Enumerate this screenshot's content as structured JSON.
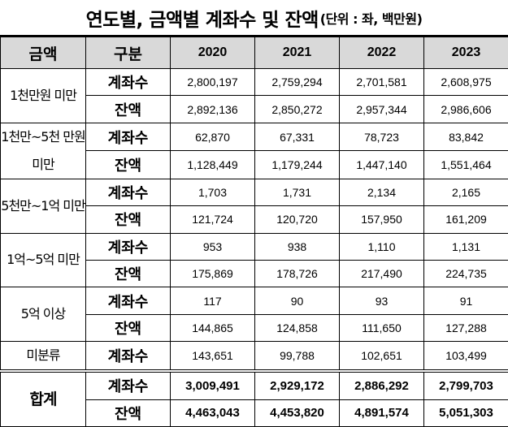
{
  "title": "연도별, 금액별 계좌수 및 잔액",
  "unit": "(단위 : 좌, 백만원)",
  "headers": [
    "금액",
    "구분",
    "2020",
    "2021",
    "2022",
    "2023"
  ],
  "groups": [
    {
      "category": "1천만원 미만",
      "rows": [
        {
          "type": "계좌수",
          "values": [
            "2,800,197",
            "2,759,294",
            "2,701,581",
            "2,608,975"
          ]
        },
        {
          "type": "잔액",
          "values": [
            "2,892,136",
            "2,850,272",
            "2,957,344",
            "2,986,606"
          ]
        }
      ]
    },
    {
      "category": "1천만~5천 만원 미만",
      "rows": [
        {
          "type": "계좌수",
          "values": [
            "62,870",
            "67,331",
            "78,723",
            "83,842"
          ]
        },
        {
          "type": "잔액",
          "values": [
            "1,128,449",
            "1,179,244",
            "1,447,140",
            "1,551,464"
          ]
        }
      ]
    },
    {
      "category": "5천만~1억 미만",
      "rows": [
        {
          "type": "계좌수",
          "values": [
            "1,703",
            "1,731",
            "2,134",
            "2,165"
          ]
        },
        {
          "type": "잔액",
          "values": [
            "121,724",
            "120,720",
            "157,950",
            "161,209"
          ]
        }
      ]
    },
    {
      "category": "1억~5억 미만",
      "rows": [
        {
          "type": "계좌수",
          "values": [
            "953",
            "938",
            "1,110",
            "1,131"
          ]
        },
        {
          "type": "잔액",
          "values": [
            "175,869",
            "178,726",
            "217,490",
            "224,735"
          ]
        }
      ]
    },
    {
      "category": "5억 이상",
      "rows": [
        {
          "type": "계좌수",
          "values": [
            "117",
            "90",
            "93",
            "91"
          ]
        },
        {
          "type": "잔액",
          "values": [
            "144,865",
            "124,858",
            "111,650",
            "127,288"
          ]
        }
      ]
    },
    {
      "category": "미분류",
      "rows": [
        {
          "type": "계좌수",
          "values": [
            "143,651",
            "99,788",
            "102,651",
            "103,499"
          ]
        }
      ]
    },
    {
      "category": "합계",
      "total": true,
      "rows": [
        {
          "type": "계좌수",
          "values": [
            "3,009,491",
            "2,929,172",
            "2,886,292",
            "2,799,703"
          ]
        },
        {
          "type": "잔액",
          "values": [
            "4,463,043",
            "4,453,820",
            "4,891,574",
            "5,051,303"
          ]
        }
      ]
    }
  ],
  "colors": {
    "header_bg": "#d9d9d9",
    "border": "#000000"
  }
}
